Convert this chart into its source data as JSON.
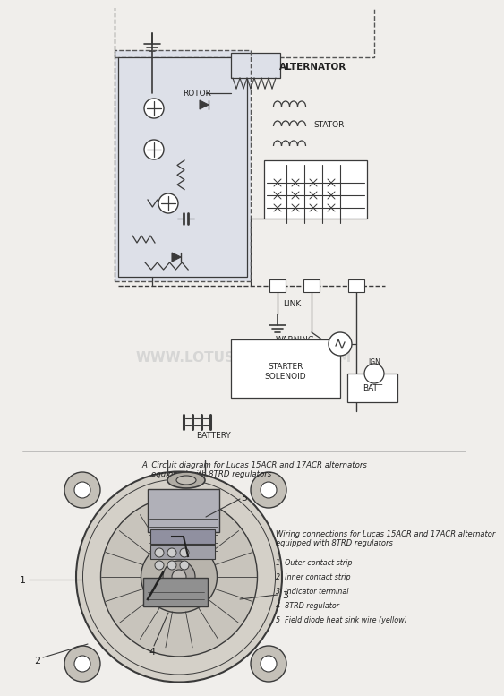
{
  "bg_color": "#e8e8e8",
  "page_bg": "#f0eeeb",
  "title_caption": "A  Circuit diagram for Lucas 15ACR and 17ACR alternators\n    equipped with 8TRD regulators",
  "wiring_title": "Wiring connections for Lucas 15ACR and 17ACR alternator\nequipped with 8TRD regulators",
  "legend": [
    "1  Outer contact strip",
    "2  Inner contact strip",
    "3  Indicator terminal",
    "4  8TRD regulator",
    "5  Field diode heat sink wire (yellow)"
  ],
  "watermark": "WWW.LOTUSMARQUES.COM",
  "line_color": "#3a3a3a",
  "dashed_color": "#555555",
  "text_color": "#222222",
  "font_size_label": 7,
  "font_size_caption": 6.5
}
